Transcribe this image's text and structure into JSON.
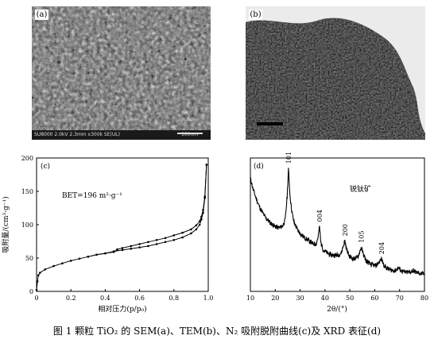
{
  "panels": {
    "a": {
      "label": "(a)",
      "info_bar": "SU8000 2.0kV 2.3mm x300k SE(UL)",
      "scale_label": "100nm"
    },
    "b": {
      "label": "(b)"
    }
  },
  "chart_data": [
    {
      "type": "line",
      "panel_label": "(c)",
      "annotation": "BET=196 m²·g⁻¹",
      "xlabel": "相对压力(p/p₀)",
      "ylabel": "吸附量/(cm³·g⁻¹)",
      "xlim": [
        0,
        1.0
      ],
      "ylim": [
        0,
        200
      ],
      "xticks": [
        "0",
        "0.2",
        "0.4",
        "0.6",
        "0.8",
        "1.0"
      ],
      "yticks": [
        "0",
        "50",
        "100",
        "150",
        "200"
      ],
      "grid": false,
      "series": [
        {
          "x": [
            0.0,
            0.005,
            0.01,
            0.02,
            0.05,
            0.1,
            0.15,
            0.2,
            0.25,
            0.3,
            0.35,
            0.4,
            0.45,
            0.5,
            0.55,
            0.6,
            0.65,
            0.7,
            0.75,
            0.8,
            0.85,
            0.9,
            0.93,
            0.95,
            0.96,
            0.97,
            0.98,
            0.99
          ],
          "y": [
            2,
            15,
            24,
            28,
            33,
            38,
            42,
            46,
            49,
            52,
            55,
            57,
            60,
            62,
            64,
            66,
            68,
            71,
            74,
            77,
            81,
            87,
            93,
            100,
            108,
            118,
            140,
            190
          ]
        },
        {
          "x": [
            0.99,
            0.98,
            0.97,
            0.96,
            0.95,
            0.93,
            0.9,
            0.85,
            0.8,
            0.75,
            0.7,
            0.65,
            0.6,
            0.55,
            0.5,
            0.47,
            0.45,
            0.4,
            0.35,
            0.3
          ],
          "y": [
            190,
            142,
            122,
            112,
            105,
            99,
            93,
            88,
            84,
            80,
            77,
            74,
            71,
            68,
            65,
            63,
            59,
            57,
            55,
            52
          ]
        }
      ]
    },
    {
      "type": "line",
      "panel_label": "(d)",
      "annotation": "锐钛矿",
      "xlabel": "2θ/(°)",
      "ylabel": "",
      "xlim": [
        10,
        80
      ],
      "xticks": [
        "10",
        "20",
        "30",
        "40",
        "50",
        "60",
        "70",
        "80"
      ],
      "grid": false,
      "peak_labels": [
        {
          "label": "101",
          "x": 25.3
        },
        {
          "label": "004",
          "x": 37.8
        },
        {
          "label": "200",
          "x": 48.0
        },
        {
          "label": "105",
          "x": 54.6
        },
        {
          "label": "204",
          "x": 62.7
        }
      ],
      "series": [
        {
          "x": [
            10,
            10.5,
            11,
            12,
            13,
            14,
            15,
            16,
            17,
            18,
            19,
            20,
            21,
            22,
            23,
            24,
            24.8,
            25.3,
            25.9,
            26.6,
            27.5,
            29,
            31,
            33,
            35,
            36.5,
            37.3,
            37.8,
            38.3,
            39.2,
            41,
            43,
            45,
            46.5,
            47.4,
            48.0,
            48.7,
            49.8,
            51.5,
            53.2,
            54.0,
            54.6,
            55.3,
            56.5,
            58.5,
            60.5,
            61.8,
            62.7,
            63.6,
            65,
            67,
            68.5,
            69.5,
            70.5,
            72,
            74,
            75.5,
            76.5,
            78,
            80
          ],
          "y": [
            118,
            114,
            108,
            100,
            93,
            87,
            82,
            78,
            75,
            72,
            70,
            68,
            67,
            67,
            69,
            75,
            100,
            129,
            102,
            85,
            73,
            64,
            58,
            54,
            50,
            50,
            58,
            68,
            52,
            44,
            40,
            38,
            38,
            40,
            48,
            53,
            44,
            37,
            34,
            36,
            42,
            46,
            40,
            32,
            28,
            27,
            31,
            34,
            28,
            24,
            22,
            22,
            25,
            22,
            20,
            20,
            22,
            20,
            19,
            18
          ]
        }
      ]
    }
  ],
  "caption": "图 1   颗粒 TiO₂ 的 SEM(a)、TEM(b)、N₂ 吸附脱附曲线(c)及 XRD 表征(d)"
}
